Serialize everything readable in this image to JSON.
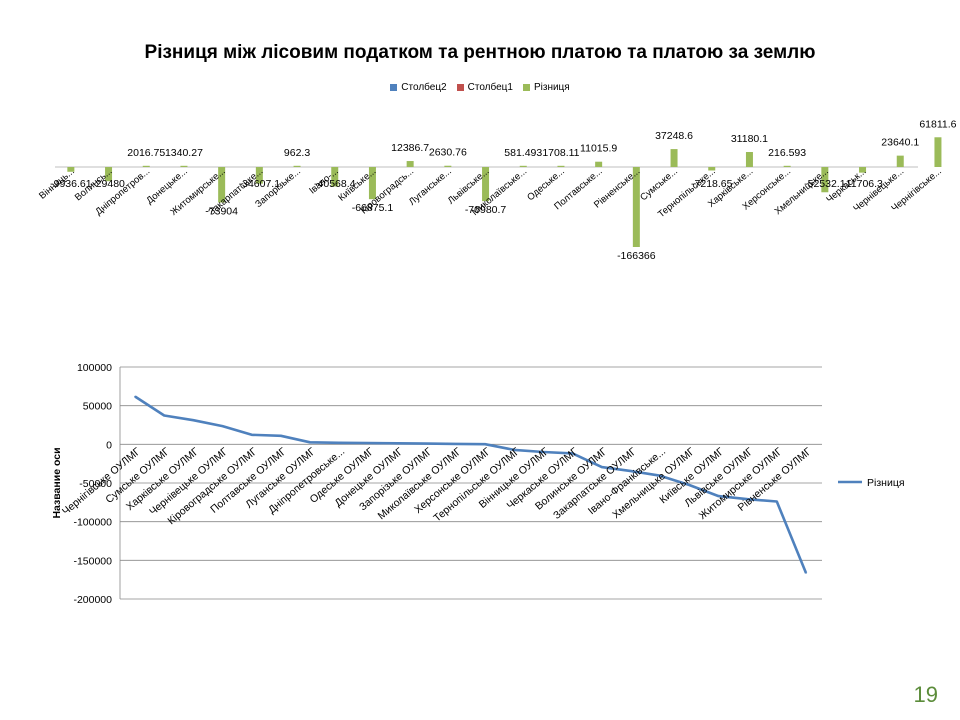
{
  "page_number": "19",
  "colors": {
    "bar": "#9bbb59",
    "line": "#4f81bd",
    "col2": "#4f81bd",
    "col1": "#c0504d",
    "grid": "#888888"
  },
  "chart_data": [
    {
      "type": "bar",
      "title": "Різниця між лісовим податком та рентною платою та платою за землю",
      "legend": [
        {
          "name": "Столбец2",
          "color": "#4f81bd"
        },
        {
          "name": "Столбец1",
          "color": "#c0504d"
        },
        {
          "name": "Різниця",
          "color": "#9bbb59"
        }
      ],
      "legend_position": "top",
      "categories": [
        "Вінниць...",
        "Волинсь...",
        "Дніпропетров...",
        "Донецьке...",
        "Житомирське...",
        "Закарпатське...",
        "Запорізьке...",
        "Івано-...",
        "Київське...",
        "Кіровоградсь...",
        "Луганське...",
        "Львівське...",
        "Миколаївське...",
        "Одеське...",
        "Полтавське...",
        "Рівненське...",
        "Сумське...",
        "Тернопільське...",
        "Харківське...",
        "Херсонське...",
        "Хмельницьке...",
        "Черкаськ...",
        "Чернівецьке...",
        "Чернігівське..."
      ],
      "series": [
        {
          "name": "Різниця",
          "values": [
            -9936.61,
            -29480,
            2016.75,
            1340.27,
            -73904,
            -34607.1,
            962.3,
            -40568.4,
            -66875.1,
            12386.7,
            2630.76,
            -70980.7,
            581.493,
            1708.11,
            11015.9,
            -166366,
            37248.6,
            -7218.65,
            31180.1,
            216.593,
            -52532.1,
            -11706.3,
            23640.1,
            61811.6
          ],
          "labels": [
            "-9936.61",
            "-29480",
            "2016.75",
            "1340.27",
            "-73904",
            "-34607.1",
            "962.3",
            "-40568.4",
            "-66875.1",
            "12386.7",
            "2630.76",
            "-70980.7",
            "581.493",
            "1708.11",
            "11015.9",
            "-166366",
            "37248.6",
            "-7218.65",
            "31180.1",
            "216.593",
            "-52532.1",
            "-11706.3",
            "23640.1",
            "61811.6"
          ]
        }
      ],
      "grid": false
    },
    {
      "type": "line",
      "title": "",
      "ylabel": "Название оси",
      "ylim": [
        -200000,
        100000
      ],
      "yticks": [
        "100000",
        "50000",
        "0",
        "-50000",
        "-100000",
        "-150000",
        "-200000"
      ],
      "ytick_values": [
        100000,
        50000,
        0,
        -50000,
        -100000,
        -150000,
        -200000
      ],
      "categories": [
        "Чернігівське ОУЛМГ",
        "Сумське ОУЛМГ",
        "Харківське ОУЛМГ",
        "Чернівецьке ОУЛМГ",
        "Кіровоградське ОУЛМГ",
        "Полтавське ОУЛМГ",
        "Луганське ОУЛМГ",
        "Дніпропетровське...",
        "Одеське ОУЛМГ",
        "Донецьке ОУЛМГ",
        "Запорізьке ОУЛМГ",
        "Миколаївське ОУЛМГ",
        "Херсонське ОУЛМГ",
        "Тернопільське ОУЛМГ",
        "Вінницьке ОУЛМГ",
        "Черкаське ОУЛМГ",
        "Волинське ОУЛМГ",
        "Закарпатське ОУЛМГ",
        "Івано-Франківське...",
        "Хмельницьке ОУЛМГ",
        "Київське ОУЛМГ",
        "Львівське ОУЛМГ",
        "Житомирське ОУЛМГ",
        "Рівненське ОУЛМГ"
      ],
      "series": [
        {
          "name": "Різниця",
          "values": [
            61811.6,
            37248.6,
            31180.1,
            23640.1,
            12386.7,
            11015.9,
            2630.76,
            2016.75,
            1708.11,
            1340.27,
            962.3,
            581.493,
            216.593,
            -7218.65,
            -9936.61,
            -11706.3,
            -29480,
            -34607.1,
            -40568.4,
            -52532.1,
            -66875.1,
            -70980.7,
            -73904,
            -166366
          ]
        }
      ],
      "legend_position": "right",
      "grid": true
    }
  ]
}
